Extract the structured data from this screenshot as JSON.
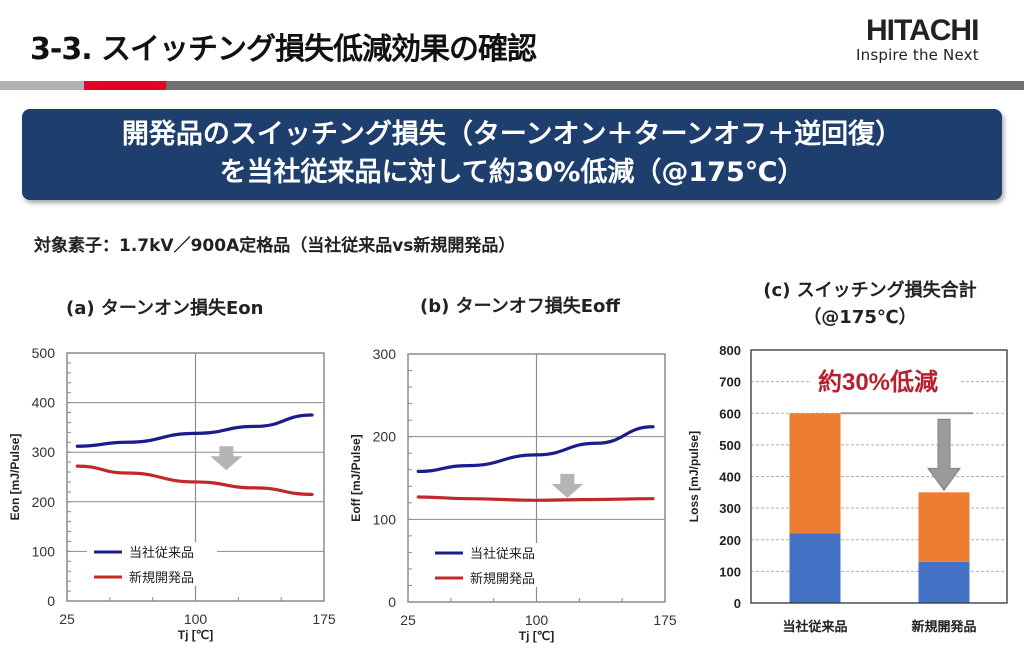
{
  "header": {
    "title": "3-3. スイッチング損失低減効果の確認",
    "logo": "HITACHI",
    "tagline": "Inspire the Next"
  },
  "banner": {
    "line1": "開発品のスイッチング損失（ターンオン＋ターンオフ＋逆回復）",
    "line2": "を当社従来品に対して約30%低減（@175℃）"
  },
  "subject": "対象素子：1.7kV／900A定格品（当社従来品vs新規開発品）",
  "colors": {
    "conventional": "#1c1c8a",
    "developed": "#c0282a",
    "bar_lower": "#4472c4",
    "bar_upper": "#ed7d31",
    "annotation": "#b8202e",
    "arrow": "#b4b4b4"
  },
  "chart_data": [
    {
      "type": "line",
      "title": "(a) ターンオン損失Eon",
      "xlabel": "Tj [℃]",
      "ylabel": "Eon [mJ/Pulse]",
      "xlim": [
        25,
        175
      ],
      "ylim": [
        0,
        500
      ],
      "xticks": [
        "25",
        "100",
        "175"
      ],
      "yticks": [
        "0",
        "100",
        "200",
        "300",
        "400",
        "500"
      ],
      "grid": true,
      "legend_position": "bottom-left",
      "series": [
        {
          "name": "当社従来品",
          "x": [
            31,
            60,
            100,
            135,
            168
          ],
          "values": [
            312,
            320,
            338,
            352,
            375
          ]
        },
        {
          "name": "新規開発品",
          "x": [
            31,
            60,
            100,
            135,
            168
          ],
          "values": [
            272,
            258,
            240,
            228,
            215
          ]
        }
      ]
    },
    {
      "type": "line",
      "title": "(b) ターンオフ損失Eoff",
      "xlabel": "Tj [℃]",
      "ylabel": "Eoff [mJ/Pulse]",
      "xlim": [
        25,
        175
      ],
      "ylim": [
        0,
        300
      ],
      "xticks": [
        "25",
        "100",
        "175"
      ],
      "yticks": [
        "0",
        "100",
        "200",
        "300"
      ],
      "grid": true,
      "legend_position": "bottom-left",
      "series": [
        {
          "name": "当社従来品",
          "x": [
            31,
            60,
            100,
            135,
            168
          ],
          "values": [
            158,
            165,
            178,
            192,
            212
          ]
        },
        {
          "name": "新規開発品",
          "x": [
            31,
            60,
            100,
            135,
            168
          ],
          "values": [
            127,
            125,
            123,
            124,
            125
          ]
        }
      ]
    },
    {
      "type": "bar",
      "title": "(c) スイッチング損失合計",
      "subtitle": "（@175℃）",
      "ylabel": "Loss [mJ/pulse]",
      "ylim": [
        0,
        800
      ],
      "yticks": [
        "0",
        "100",
        "200",
        "300",
        "400",
        "500",
        "600",
        "700",
        "800"
      ],
      "categories": [
        "当社従来品",
        "新規開発品"
      ],
      "stacked": true,
      "series": [
        {
          "name": "lower",
          "values": [
            220,
            130
          ]
        },
        {
          "name": "upper",
          "values": [
            380,
            220
          ]
        }
      ],
      "totals": [
        600,
        350
      ],
      "annotation": "約30%低減"
    }
  ]
}
